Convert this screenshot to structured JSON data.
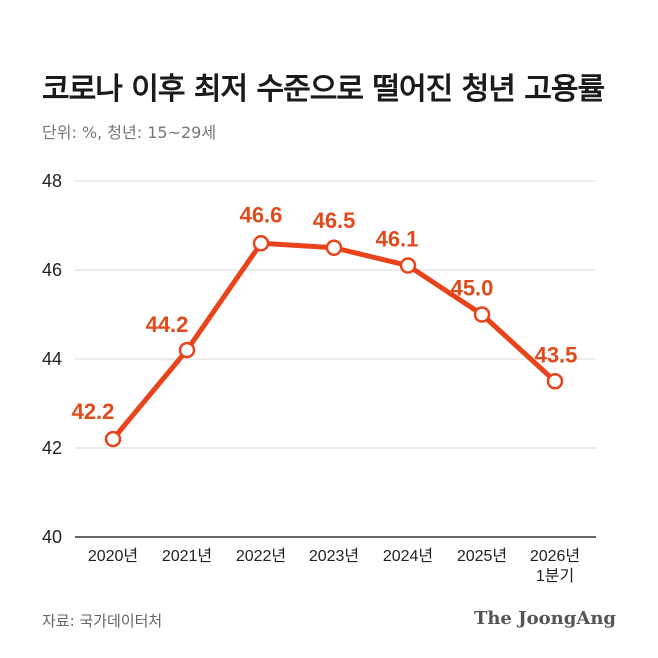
{
  "title": "코로나 이후 최저 수준으로 떨어진 청년 고용률",
  "subtitle": "단위: %, 청년: 15~29세",
  "source": "자료: 국가데이터처",
  "brand": "The JoongAng",
  "colors": {
    "line": "#e8431b",
    "label": "#e04a1c",
    "grid": "#d9d9d9",
    "axis": "#333333",
    "marker_fill": "#ffffff"
  },
  "chart_data": {
    "type": "line",
    "categories": [
      "2020년",
      "2021년",
      "2022년",
      "2023년",
      "2024년",
      "2025년",
      "2026년\n1분기"
    ],
    "values": [
      42.2,
      44.2,
      46.6,
      46.5,
      46.1,
      45.0,
      43.5
    ],
    "data_labels": [
      "42.2",
      "44.2",
      "46.6",
      "46.5",
      "46.1",
      "45.0",
      "43.5"
    ],
    "yticks": [
      "40",
      "42",
      "44",
      "46",
      "48"
    ],
    "ylim": [
      40,
      48
    ],
    "grid": true,
    "legend": "none"
  }
}
